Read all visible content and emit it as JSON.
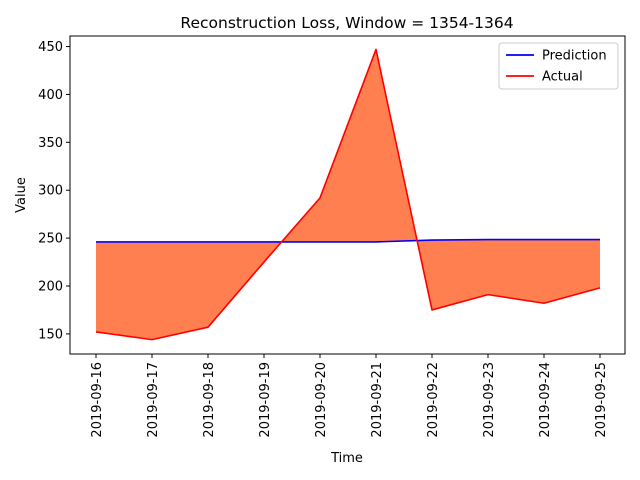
{
  "chart_data": {
    "type": "line",
    "title": "Reconstruction Loss, Window = 1354-1364",
    "xlabel": "Time",
    "ylabel": "Value",
    "categories": [
      "2019-09-16",
      "2019-09-17",
      "2019-09-18",
      "2019-09-19",
      "2019-09-20",
      "2019-09-21",
      "2019-09-22",
      "2019-09-23",
      "2019-09-24",
      "2019-09-25"
    ],
    "series": [
      {
        "name": "Prediction",
        "color": "#0000ff",
        "values": [
          246,
          246,
          246,
          246,
          246,
          246,
          248,
          248.5,
          248.5,
          248.5
        ]
      },
      {
        "name": "Actual",
        "color": "#ff0000",
        "values": [
          152,
          144,
          157,
          225,
          292,
          447,
          175,
          191,
          182,
          198
        ]
      }
    ],
    "fill_between": {
      "color": "#ff7f50"
    },
    "ylim": [
      129,
      461
    ],
    "yticks": [
      150,
      200,
      250,
      300,
      350,
      400,
      450
    ],
    "grid": false,
    "legend_position": "top-right"
  }
}
